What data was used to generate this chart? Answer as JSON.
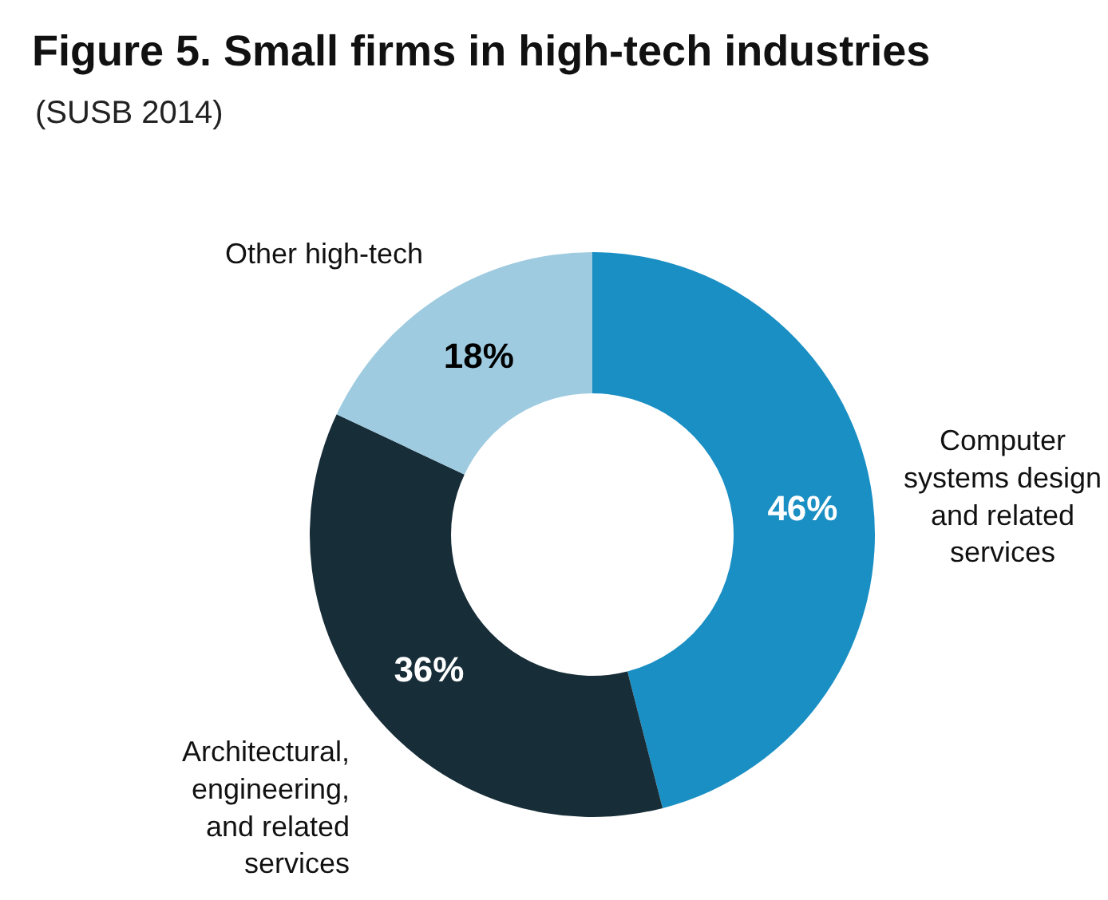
{
  "chart_data": {
    "type": "donut",
    "title": "Figure 5. Small firms in high-tech industries",
    "subtitle": "(SUSB 2014)",
    "categories": [
      "Computer\nsystems design\nand related\nservices",
      "Architectural,\nengineering,\nand related\nservices",
      "Other high-tech"
    ],
    "values": [
      46,
      36,
      18
    ],
    "colors": [
      "#1a8fc4",
      "#172d38",
      "#9ecbe0"
    ],
    "value_labels": [
      "46%",
      "36%",
      "18%"
    ],
    "legend": false
  }
}
